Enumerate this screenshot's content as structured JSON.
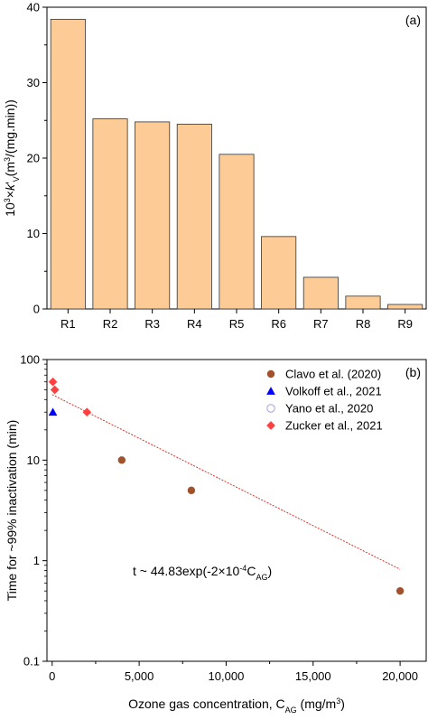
{
  "chart_data": [
    {
      "type": "bar",
      "panel_label": "(a)",
      "categories": [
        "R1",
        "R2",
        "R3",
        "R4",
        "R5",
        "R6",
        "R7",
        "R8",
        "R9"
      ],
      "values": [
        38.4,
        25.2,
        24.8,
        24.5,
        20.5,
        9.6,
        4.2,
        1.7,
        0.6
      ],
      "ylabel_parts": {
        "prefix": "10",
        "exp": "3",
        "times": "×",
        "k": "k",
        "prime": "'",
        "sub": "V",
        "unit_open": "(m",
        "unit_exp": "3",
        "unit_close": "/(mg.min))"
      },
      "yticks": [
        0,
        10,
        20,
        30,
        40
      ],
      "ylim": [
        0,
        40
      ],
      "bar_color": "#FCCB96",
      "bar_edge": "#333333",
      "grid": false
    },
    {
      "type": "scatter",
      "panel_label": "(b)",
      "yscale": "log",
      "ylim": [
        0.1,
        100
      ],
      "xlim": [
        -300,
        21500
      ],
      "xticks": [
        0,
        5000,
        10000,
        15000,
        20000
      ],
      "xtick_labels": [
        "0",
        "5,000",
        "10,000",
        "15,000",
        "20,000"
      ],
      "yticks": [
        0.1,
        1,
        10,
        100
      ],
      "ytick_labels": [
        "0.1",
        "1",
        "10",
        "100"
      ],
      "xlabel_parts": {
        "main": "Ozone gas concentration, C",
        "sub": "AG",
        "unit_open": " (mg/m",
        "unit_exp": "3",
        "unit_close": ")"
      },
      "ylabel": "Time for ~99% inactivation (min)",
      "legend_position": "top-right",
      "series": [
        {
          "name": "Clavo et al. (2020)",
          "marker": "circle",
          "color": "#A0522D",
          "x": [
            4000,
            8000,
            20000
          ],
          "y": [
            10,
            5,
            0.5
          ]
        },
        {
          "name": "Volkoff et al., 2021",
          "marker": "triangle",
          "color": "#0000FF",
          "x": [
            40
          ],
          "y": [
            30
          ]
        },
        {
          "name": "Yano et al., 2020",
          "marker": "open-circle",
          "color": "#A0A0E0",
          "x": [],
          "y": []
        },
        {
          "name": "Zucker et al., 2021",
          "marker": "diamond",
          "color": "#FF4040",
          "x": [
            40,
            150,
            2000
          ],
          "y": [
            60,
            50,
            30
          ]
        }
      ],
      "fit": {
        "color": "#E03030",
        "a": 44.83,
        "b": 0.0002,
        "x_range": [
          0,
          20000
        ],
        "annotation": {
          "prefix": "t ~ 44.83exp(-2×10",
          "exp": "-4",
          "mid": "C",
          "sub": "AG",
          "suffix": ")"
        }
      }
    }
  ]
}
